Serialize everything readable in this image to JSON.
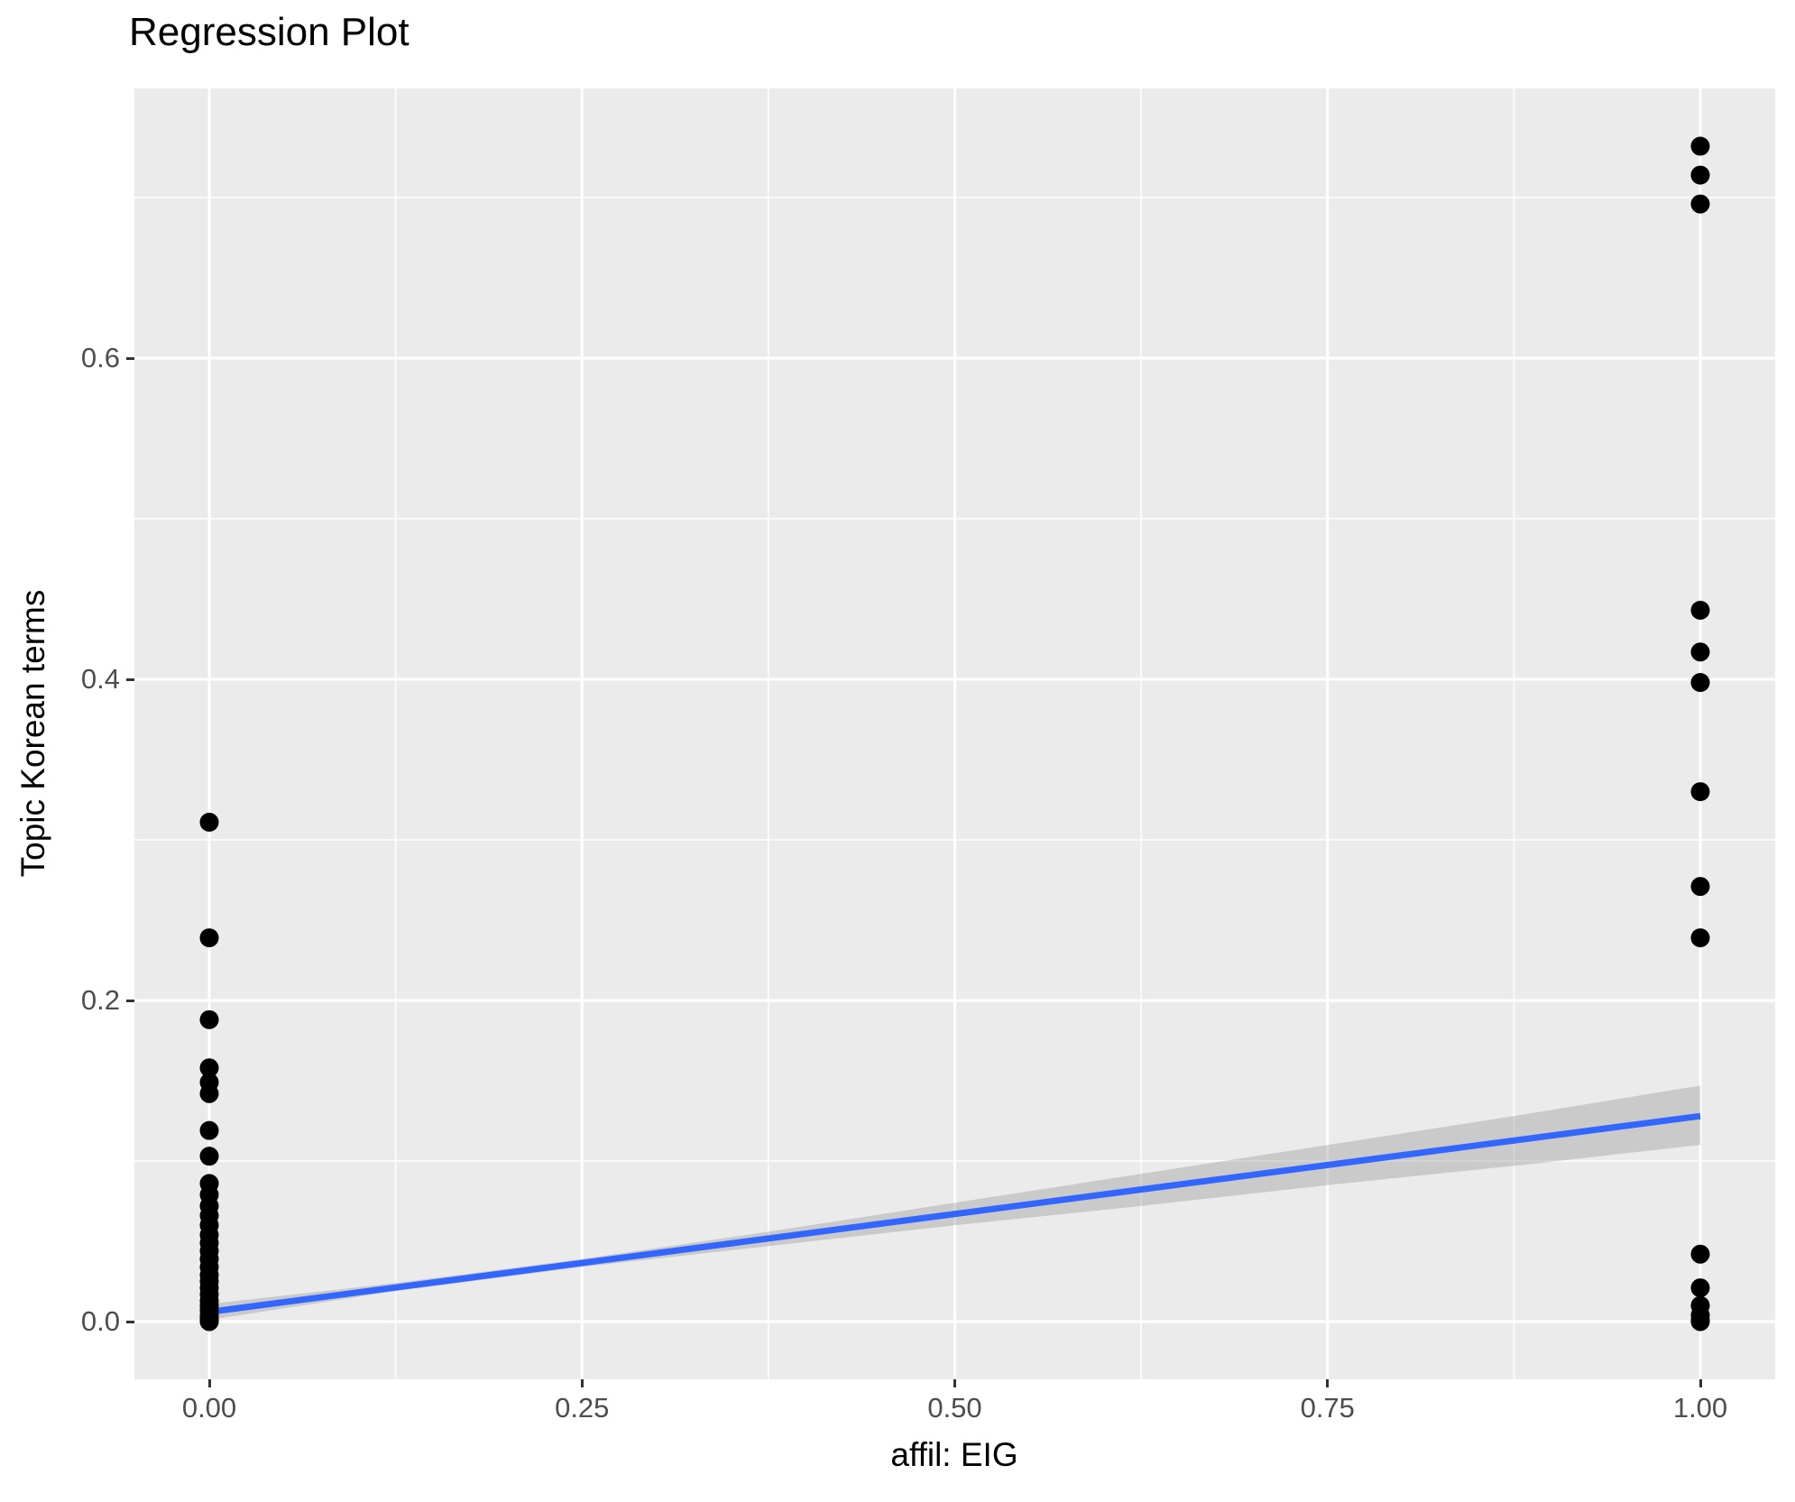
{
  "colors": {
    "panel_background": "#EBEBEB",
    "gridline": "#FFFFFF",
    "tick_text": "#4D4D4D",
    "tick_mark": "#333333",
    "point": "#000000",
    "regression_line": "#3366FF",
    "confidence_band": "#999999",
    "title_text": "#000000"
  },
  "chart_data": {
    "type": "scatter",
    "title": "Regression Plot",
    "xlabel": "affil: EIG",
    "ylabel": "Topic Korean terms",
    "xlim": [
      -0.05,
      1.05
    ],
    "ylim": [
      -0.036,
      0.768
    ],
    "grid": "white major and minor gridlines on grey panel, legend none",
    "x_ticks": [
      {
        "value": 0.0,
        "label": "0.00"
      },
      {
        "value": 0.25,
        "label": "0.25"
      },
      {
        "value": 0.5,
        "label": "0.50"
      },
      {
        "value": 0.75,
        "label": "0.75"
      },
      {
        "value": 1.0,
        "label": "1.00"
      }
    ],
    "y_ticks": [
      {
        "value": 0.0,
        "label": "0.0"
      },
      {
        "value": 0.2,
        "label": "0.2"
      },
      {
        "value": 0.4,
        "label": "0.4"
      },
      {
        "value": 0.6,
        "label": "0.6"
      }
    ],
    "x_minor_ticks": [
      0.125,
      0.375,
      0.625,
      0.875
    ],
    "y_minor_ticks": [
      0.1,
      0.3,
      0.5,
      0.7
    ],
    "series": [
      {
        "name": "observations",
        "color": "#000000",
        "points": [
          [
            0,
            0.311
          ],
          [
            0,
            0.239
          ],
          [
            0,
            0.188
          ],
          [
            0,
            0.158
          ],
          [
            0,
            0.149
          ],
          [
            0,
            0.142
          ],
          [
            0,
            0.119
          ],
          [
            0,
            0.103
          ],
          [
            0,
            0.086
          ],
          [
            0,
            0.079
          ],
          [
            0,
            0.072
          ],
          [
            0,
            0.066
          ],
          [
            0,
            0.06
          ],
          [
            0,
            0.054
          ],
          [
            0,
            0.049
          ],
          [
            0,
            0.044
          ],
          [
            0,
            0.039
          ],
          [
            0,
            0.034
          ],
          [
            0,
            0.029
          ],
          [
            0,
            0.025
          ],
          [
            0,
            0.021
          ],
          [
            0,
            0.017
          ],
          [
            0,
            0.013
          ],
          [
            0,
            0.01
          ],
          [
            0,
            0.007
          ],
          [
            0,
            0.004
          ],
          [
            0,
            0.002
          ],
          [
            0,
            0.001
          ],
          [
            0,
            0.0
          ],
          [
            1,
            0.732
          ],
          [
            1,
            0.714
          ],
          [
            1,
            0.696
          ],
          [
            1,
            0.443
          ],
          [
            1,
            0.417
          ],
          [
            1,
            0.398
          ],
          [
            1,
            0.33
          ],
          [
            1,
            0.271
          ],
          [
            1,
            0.239
          ],
          [
            1,
            0.042
          ],
          [
            1,
            0.021
          ],
          [
            1,
            0.01
          ],
          [
            1,
            0.004
          ],
          [
            1,
            0.001
          ],
          [
            1,
            0.0
          ]
        ]
      }
    ],
    "regression_line": {
      "color": "#3366FF",
      "x": [
        0,
        1
      ],
      "y": [
        0.006,
        0.128
      ]
    },
    "confidence_band": {
      "color": "#999999",
      "opacity": 0.4,
      "x": [
        0.0,
        0.125,
        0.25,
        0.375,
        0.5,
        0.625,
        0.75,
        0.875,
        1.0
      ],
      "upper": [
        0.011,
        0.024,
        0.039,
        0.056,
        0.074,
        0.092,
        0.11,
        0.128,
        0.147
      ],
      "lower": [
        0.001,
        0.019,
        0.034,
        0.047,
        0.06,
        0.072,
        0.085,
        0.097,
        0.11
      ]
    }
  }
}
